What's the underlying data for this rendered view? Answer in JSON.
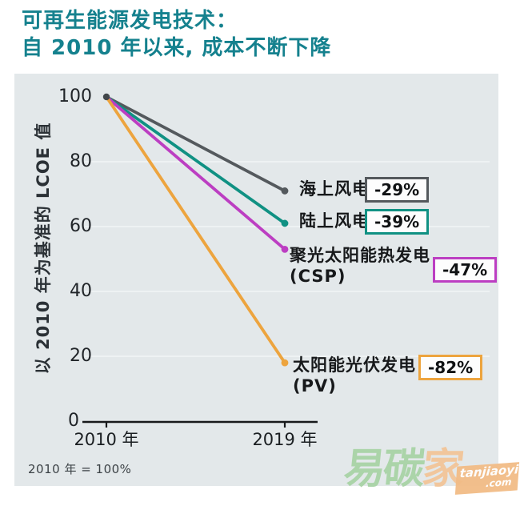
{
  "title": {
    "line1": "可再生能源发电技术：",
    "line2": "自 2010 年以来, 成本不断下降",
    "color": "#15818e"
  },
  "chart_data": {
    "type": "line",
    "x": [
      2010,
      2019
    ],
    "x_tick_labels": [
      "2010 年",
      "2019 年"
    ],
    "ylabel": "以 2010 年为基准的 LCOE 值",
    "ylim": [
      0,
      100
    ],
    "yticks": [
      0,
      20,
      40,
      60,
      80,
      100
    ],
    "gridlines": [
      20,
      40,
      60,
      80
    ],
    "grid": "on",
    "series": [
      {
        "name": "海上风电",
        "name_line2": "",
        "values": [
          100,
          71
        ],
        "change_label": "-29%",
        "color": "#54595d"
      },
      {
        "name": "陆上风电",
        "name_line2": "",
        "values": [
          100,
          61
        ],
        "change_label": "-39%",
        "color": "#109183"
      },
      {
        "name": "聚光太阳能热发电",
        "name_line2": "(CSP)",
        "values": [
          100,
          53
        ],
        "change_label": "-47%",
        "color": "#bc3ec2"
      },
      {
        "name": "太阳能光伏发电",
        "name_line2": "(PV)",
        "values": [
          100,
          18
        ],
        "change_label": "-82%",
        "color": "#eda43e"
      }
    ],
    "start_point_color": "#42474b",
    "footnote": "2010 年 = 100%"
  },
  "watermark": {
    "chars": [
      {
        "text": "易",
        "color": "#a6d2a2"
      },
      {
        "text": "碳",
        "color": "#a6d2a2"
      },
      {
        "text": "家",
        "color": "#f3c394"
      }
    ],
    "badge": {
      "line1": "tanjiaoyi",
      "line2": ".com",
      "bg": "#f2bc86",
      "text_color": "#ffffff"
    }
  }
}
